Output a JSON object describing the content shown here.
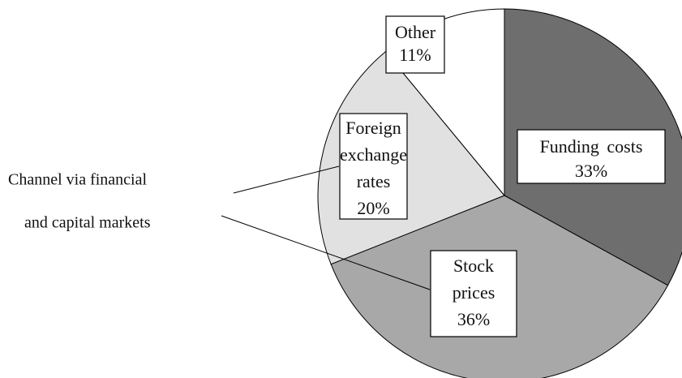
{
  "chart_data": {
    "type": "pie",
    "categories": [
      "Funding costs",
      "Stock prices",
      "Foreign exchange rates",
      "Other"
    ],
    "values": [
      33,
      36,
      20,
      11
    ],
    "value_labels": [
      "33%",
      "36%",
      "20%",
      "11%"
    ],
    "colors": [
      "#6e6e6e",
      "#a8a8a8",
      "#e1e1e1",
      "#ffffff"
    ],
    "annotation": [
      "Channel via financial",
      "and capital markets"
    ]
  }
}
